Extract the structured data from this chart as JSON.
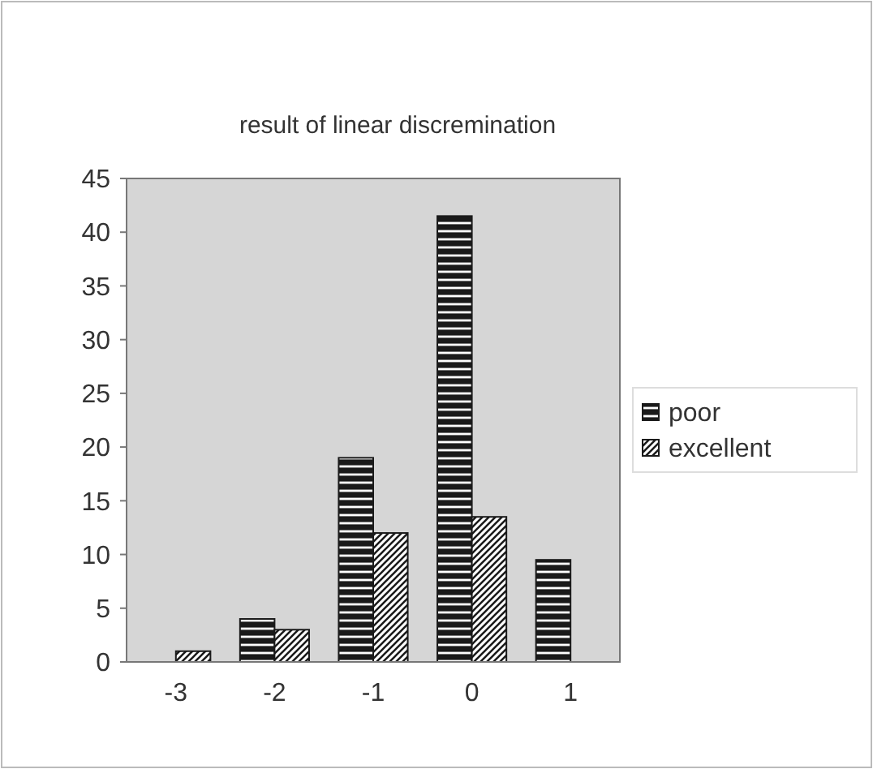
{
  "chart_data": {
    "type": "bar",
    "title": "result of linear discremination",
    "categories": [
      "-3",
      "-2",
      "-1",
      "0",
      "1"
    ],
    "series": [
      {
        "name": "poor",
        "color": "#1a1a1a",
        "values": [
          0,
          4,
          19,
          41.5,
          9.5
        ]
      },
      {
        "name": "excellent",
        "color": "#1a1a1a",
        "values": [
          1,
          3,
          12,
          13.5,
          0
        ]
      }
    ],
    "ylim": [
      0,
      45
    ],
    "yticks": [
      0,
      5,
      10,
      15,
      20,
      25,
      30,
      35,
      40,
      45
    ],
    "grid": false,
    "legend": "right"
  }
}
